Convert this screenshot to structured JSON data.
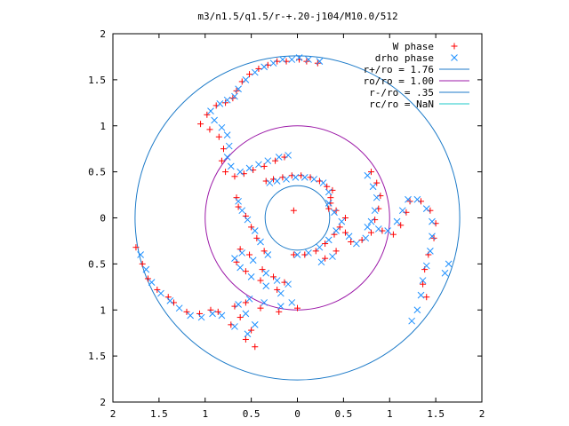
{
  "chart_data": {
    "type": "scatter",
    "title": "m3/n1.5/q1.5/r-+.20-j104/M10.0/512",
    "xlim": [
      -2,
      2
    ],
    "ylim": [
      -2,
      2
    ],
    "x_ticks": [
      "2",
      "1.5",
      "1",
      "0.5",
      "0",
      "0.5",
      "1",
      "1.5",
      "2"
    ],
    "y_ticks": [
      "2",
      "1.5",
      "1",
      "0.5",
      "0",
      "0.5",
      "1",
      "1.5",
      "2"
    ],
    "grid": false,
    "legend_position": "top-right",
    "series": [
      {
        "name": "W phase",
        "marker": "+",
        "color": "#ff0000",
        "points": [
          [
            -0.12,
            1.7
          ],
          [
            -0.22,
            1.7
          ],
          [
            -0.32,
            1.66
          ],
          [
            -0.42,
            1.62
          ],
          [
            -0.52,
            1.56
          ],
          [
            -0.6,
            1.48
          ],
          [
            -0.66,
            1.38
          ],
          [
            -0.7,
            1.3
          ],
          [
            -0.78,
            1.25
          ],
          [
            -0.88,
            1.22
          ],
          [
            -0.98,
            1.12
          ],
          [
            -1.05,
            1.02
          ],
          [
            -0.95,
            0.96
          ],
          [
            -0.85,
            0.88
          ],
          [
            -0.8,
            0.75
          ],
          [
            -0.82,
            0.62
          ],
          [
            -0.78,
            0.5
          ],
          [
            -0.68,
            0.45
          ],
          [
            -0.58,
            0.48
          ],
          [
            -0.48,
            0.52
          ],
          [
            -0.36,
            0.56
          ],
          [
            -0.24,
            0.62
          ],
          [
            -0.14,
            0.66
          ],
          [
            0.8,
            0.5
          ],
          [
            0.86,
            0.38
          ],
          [
            0.9,
            0.24
          ],
          [
            0.88,
            0.1
          ],
          [
            0.84,
            -0.02
          ],
          [
            0.92,
            -0.14
          ],
          [
            1.04,
            -0.18
          ],
          [
            1.12,
            -0.08
          ],
          [
            1.18,
            0.06
          ],
          [
            1.22,
            0.18
          ],
          [
            1.34,
            0.18
          ],
          [
            1.44,
            0.08
          ],
          [
            1.5,
            -0.06
          ],
          [
            1.48,
            -0.22
          ],
          [
            1.42,
            -0.4
          ],
          [
            1.38,
            -0.56
          ],
          [
            1.36,
            -0.72
          ],
          [
            1.4,
            -0.86
          ],
          [
            -1.75,
            -0.32
          ],
          [
            -1.68,
            -0.5
          ],
          [
            -1.62,
            -0.66
          ],
          [
            -1.52,
            -0.78
          ],
          [
            -1.4,
            -0.86
          ],
          [
            -1.34,
            -0.92
          ],
          [
            -1.2,
            -1.02
          ],
          [
            -1.06,
            -1.04
          ],
          [
            -0.94,
            -1.0
          ],
          [
            -0.86,
            -1.02
          ],
          [
            -0.72,
            -1.16
          ],
          [
            -0.56,
            -1.32
          ],
          [
            -0.46,
            -1.4
          ],
          [
            -0.5,
            -1.22
          ],
          [
            -0.62,
            -1.08
          ],
          [
            -0.68,
            -0.96
          ],
          [
            -0.56,
            -0.92
          ],
          [
            -0.4,
            -0.98
          ],
          [
            -0.2,
            -1.02
          ],
          [
            0.0,
            -0.98
          ],
          [
            -0.22,
            -0.78
          ],
          [
            -0.4,
            -0.68
          ],
          [
            -0.56,
            -0.58
          ],
          [
            -0.66,
            -0.48
          ],
          [
            -0.62,
            -0.34
          ],
          [
            -0.52,
            -0.4
          ],
          [
            -0.38,
            -0.56
          ],
          [
            -0.26,
            -0.64
          ],
          [
            -0.14,
            -0.7
          ],
          [
            -0.36,
            -0.36
          ],
          [
            -0.44,
            -0.22
          ],
          [
            -0.5,
            -0.1
          ],
          [
            -0.56,
            0.02
          ],
          [
            -0.64,
            0.12
          ],
          [
            -0.66,
            0.22
          ],
          [
            -0.34,
            0.4
          ],
          [
            -0.26,
            0.42
          ],
          [
            -0.16,
            0.44
          ],
          [
            -0.06,
            0.46
          ],
          [
            0.04,
            0.46
          ],
          [
            0.14,
            0.44
          ],
          [
            0.24,
            0.4
          ],
          [
            0.32,
            0.34
          ],
          [
            0.36,
            0.22
          ],
          [
            0.34,
            0.1
          ],
          [
            0.42,
            0.08
          ],
          [
            0.52,
            0.0
          ],
          [
            0.46,
            -0.1
          ],
          [
            0.4,
            -0.18
          ],
          [
            0.3,
            -0.28
          ],
          [
            0.2,
            -0.36
          ],
          [
            0.08,
            -0.4
          ],
          [
            -0.04,
            -0.4
          ],
          [
            0.52,
            -0.16
          ],
          [
            0.58,
            -0.26
          ],
          [
            0.7,
            -0.24
          ],
          [
            0.8,
            -0.16
          ],
          [
            0.36,
            0.16
          ],
          [
            0.38,
            0.3
          ],
          [
            0.3,
            -0.44
          ],
          [
            0.42,
            -0.36
          ],
          [
            -0.04,
            0.08
          ],
          [
            0.02,
            1.72
          ],
          [
            0.1,
            1.7
          ],
          [
            0.22,
            1.68
          ]
        ]
      },
      {
        "name": "drho phase",
        "marker": "x",
        "color": "#1e90ff",
        "points": [
          [
            -0.06,
            1.72
          ],
          [
            -0.16,
            1.72
          ],
          [
            -0.26,
            1.68
          ],
          [
            -0.36,
            1.64
          ],
          [
            -0.46,
            1.58
          ],
          [
            -0.56,
            1.5
          ],
          [
            -0.64,
            1.4
          ],
          [
            -0.68,
            1.32
          ],
          [
            -0.76,
            1.28
          ],
          [
            -0.84,
            1.24
          ],
          [
            -0.94,
            1.16
          ],
          [
            -0.9,
            1.06
          ],
          [
            -0.82,
            0.98
          ],
          [
            -0.76,
            0.9
          ],
          [
            -0.74,
            0.78
          ],
          [
            -0.76,
            0.66
          ],
          [
            -0.72,
            0.56
          ],
          [
            -0.62,
            0.5
          ],
          [
            -0.52,
            0.54
          ],
          [
            -0.42,
            0.58
          ],
          [
            -0.32,
            0.62
          ],
          [
            -0.2,
            0.66
          ],
          [
            -0.1,
            0.68
          ],
          [
            0.76,
            0.46
          ],
          [
            0.82,
            0.34
          ],
          [
            0.86,
            0.22
          ],
          [
            0.84,
            0.08
          ],
          [
            0.8,
            -0.04
          ],
          [
            0.88,
            -0.12
          ],
          [
            0.98,
            -0.14
          ],
          [
            1.08,
            -0.04
          ],
          [
            1.14,
            0.08
          ],
          [
            1.2,
            0.2
          ],
          [
            1.3,
            0.2
          ],
          [
            1.4,
            0.1
          ],
          [
            1.46,
            -0.04
          ],
          [
            1.46,
            -0.2
          ],
          [
            1.44,
            -0.36
          ],
          [
            1.4,
            -0.52
          ],
          [
            1.36,
            -0.68
          ],
          [
            1.34,
            -0.84
          ],
          [
            1.3,
            -1.0
          ],
          [
            1.24,
            -1.12
          ],
          [
            1.6,
            -0.6
          ],
          [
            1.64,
            -0.5
          ],
          [
            -1.7,
            -0.4
          ],
          [
            -1.64,
            -0.56
          ],
          [
            -1.58,
            -0.7
          ],
          [
            -1.48,
            -0.82
          ],
          [
            -1.38,
            -0.9
          ],
          [
            -1.28,
            -0.98
          ],
          [
            -1.16,
            -1.06
          ],
          [
            -1.04,
            -1.08
          ],
          [
            -0.92,
            -1.04
          ],
          [
            -0.82,
            -1.06
          ],
          [
            -0.68,
            -1.18
          ],
          [
            -0.54,
            -1.26
          ],
          [
            -0.46,
            -1.16
          ],
          [
            -0.56,
            -1.04
          ],
          [
            -0.64,
            -0.94
          ],
          [
            -0.52,
            -0.88
          ],
          [
            -0.36,
            -0.92
          ],
          [
            -0.18,
            -0.96
          ],
          [
            -0.06,
            -0.92
          ],
          [
            -0.18,
            -0.82
          ],
          [
            -0.34,
            -0.74
          ],
          [
            -0.5,
            -0.64
          ],
          [
            -0.62,
            -0.54
          ],
          [
            -0.68,
            -0.44
          ],
          [
            -0.6,
            -0.38
          ],
          [
            -0.48,
            -0.46
          ],
          [
            -0.34,
            -0.6
          ],
          [
            -0.22,
            -0.68
          ],
          [
            -0.1,
            -0.72
          ],
          [
            -0.32,
            -0.4
          ],
          [
            -0.4,
            -0.26
          ],
          [
            -0.46,
            -0.14
          ],
          [
            -0.54,
            -0.02
          ],
          [
            -0.6,
            0.08
          ],
          [
            -0.64,
            0.18
          ],
          [
            -0.3,
            0.38
          ],
          [
            -0.22,
            0.4
          ],
          [
            -0.12,
            0.42
          ],
          [
            -0.02,
            0.44
          ],
          [
            0.08,
            0.44
          ],
          [
            0.18,
            0.42
          ],
          [
            0.28,
            0.38
          ],
          [
            0.34,
            0.28
          ],
          [
            0.34,
            0.16
          ],
          [
            0.4,
            0.06
          ],
          [
            0.48,
            -0.04
          ],
          [
            0.42,
            -0.14
          ],
          [
            0.34,
            -0.24
          ],
          [
            0.24,
            -0.32
          ],
          [
            0.12,
            -0.38
          ],
          [
            0.0,
            -0.4
          ],
          [
            0.56,
            -0.2
          ],
          [
            0.64,
            -0.28
          ],
          [
            0.74,
            -0.22
          ],
          [
            0.76,
            -0.1
          ],
          [
            0.26,
            -0.48
          ],
          [
            0.38,
            -0.42
          ],
          [
            0.02,
            1.74
          ],
          [
            0.12,
            1.72
          ],
          [
            0.24,
            1.7
          ]
        ]
      }
    ],
    "circles": [
      {
        "name": "r+/ro = 1.76",
        "r": 1.76,
        "color": "#1c7ac8"
      },
      {
        "name": "ro/ro = 1.00",
        "r": 1.0,
        "color": "#9c1aa8"
      },
      {
        "name": "r-/ro = .35",
        "r": 0.35,
        "color": "#1c7ac8"
      },
      {
        "name": "rc/ro = NaN",
        "r": null,
        "color": "#1ec8c8"
      }
    ]
  }
}
